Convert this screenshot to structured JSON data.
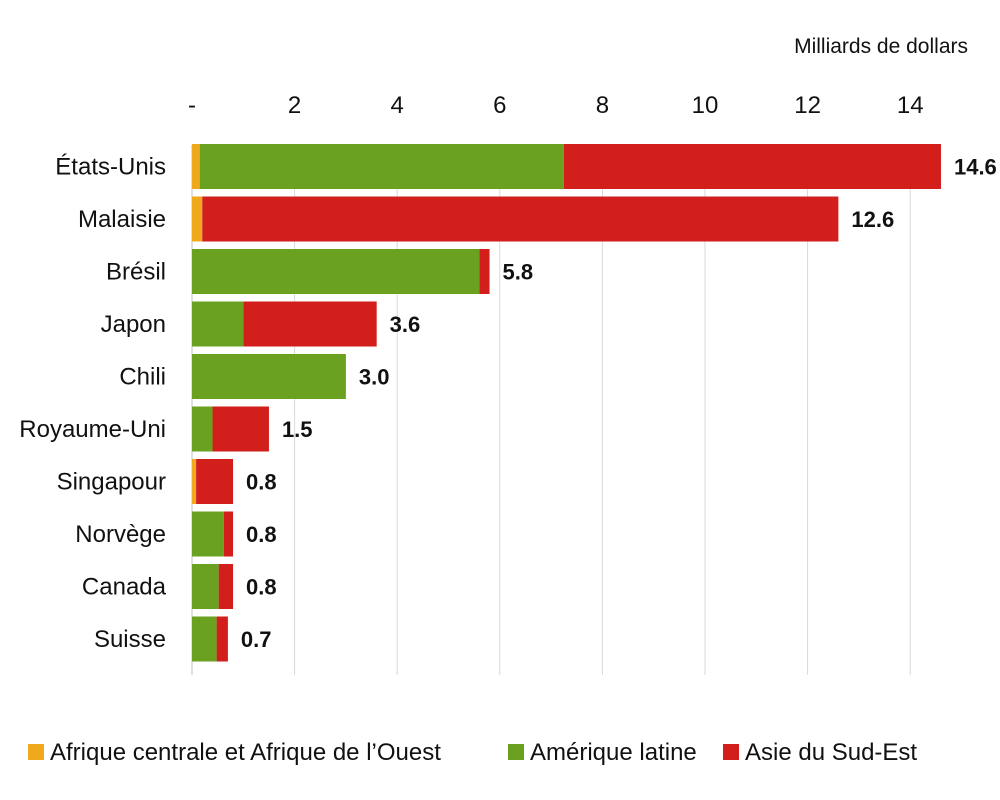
{
  "chart_data": {
    "type": "bar",
    "orientation": "horizontal",
    "stacked": true,
    "unit_label": "Milliards de dollars",
    "xlim": [
      0,
      15
    ],
    "x_ticks": [
      {
        "value": 0,
        "label": "-"
      },
      {
        "value": 2,
        "label": "2"
      },
      {
        "value": 4,
        "label": "4"
      },
      {
        "value": 6,
        "label": "6"
      },
      {
        "value": 8,
        "label": "8"
      },
      {
        "value": 10,
        "label": "10"
      },
      {
        "value": 12,
        "label": "12"
      },
      {
        "value": 14,
        "label": "14"
      }
    ],
    "grid": true,
    "legend_position": "bottom",
    "categories": [
      "États-Unis",
      "Malaisie",
      "Brésil",
      "Japon",
      "Chili",
      "Royaume-Uni",
      "Singapour",
      "Norvège",
      "Canada",
      "Suisse"
    ],
    "series": [
      {
        "name": "Afrique centrale et Afrique de l’Ouest",
        "color": "#f0a81c",
        "values": [
          0.15,
          0.2,
          0,
          0,
          0,
          0,
          0.08,
          0,
          0,
          0
        ]
      },
      {
        "name": "Amérique latine",
        "color": "#6aa121",
        "values": [
          7.1,
          0,
          5.6,
          1.0,
          3.0,
          0.4,
          0,
          0.62,
          0.52,
          0.48
        ]
      },
      {
        "name": "Asie du Sud-Est",
        "color": "#d21f1b",
        "values": [
          7.35,
          12.4,
          0.2,
          2.6,
          0,
          1.1,
          0.72,
          0.18,
          0.28,
          0.22
        ]
      }
    ],
    "totals": [
      "14.6",
      "12.6",
      "5.8",
      "3.6",
      "3.0",
      "1.5",
      "0.8",
      "0.8",
      "0.8",
      "0.7"
    ]
  }
}
